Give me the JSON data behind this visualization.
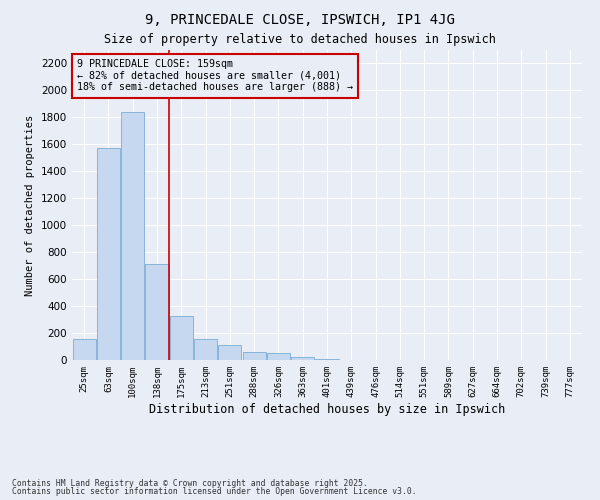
{
  "title1": "9, PRINCEDALE CLOSE, IPSWICH, IP1 4JG",
  "title2": "Size of property relative to detached houses in Ipswich",
  "xlabel": "Distribution of detached houses by size in Ipswich",
  "ylabel": "Number of detached properties",
  "categories": [
    "25sqm",
    "63sqm",
    "100sqm",
    "138sqm",
    "175sqm",
    "213sqm",
    "251sqm",
    "288sqm",
    "326sqm",
    "363sqm",
    "401sqm",
    "439sqm",
    "476sqm",
    "514sqm",
    "551sqm",
    "589sqm",
    "627sqm",
    "664sqm",
    "702sqm",
    "739sqm",
    "777sqm"
  ],
  "values": [
    155,
    1570,
    1840,
    710,
    330,
    155,
    115,
    60,
    50,
    20,
    10,
    0,
    0,
    0,
    0,
    0,
    0,
    0,
    0,
    0,
    0
  ],
  "bar_color": "#c5d8f0",
  "bar_edge_color": "#7aadd4",
  "bg_color": "#e8edf6",
  "grid_color": "#d0d8e8",
  "vline_x": 3.5,
  "vline_color": "#cc0000",
  "annotation_text": "9 PRINCEDALE CLOSE: 159sqm\n← 82% of detached houses are smaller (4,001)\n18% of semi-detached houses are larger (888) →",
  "annotation_box_color": "#cc0000",
  "footnote1": "Contains HM Land Registry data © Crown copyright and database right 2025.",
  "footnote2": "Contains public sector information licensed under the Open Government Licence v3.0.",
  "ylim": [
    0,
    2300
  ],
  "yticks": [
    0,
    200,
    400,
    600,
    800,
    1000,
    1200,
    1400,
    1600,
    1800,
    2000,
    2200
  ]
}
